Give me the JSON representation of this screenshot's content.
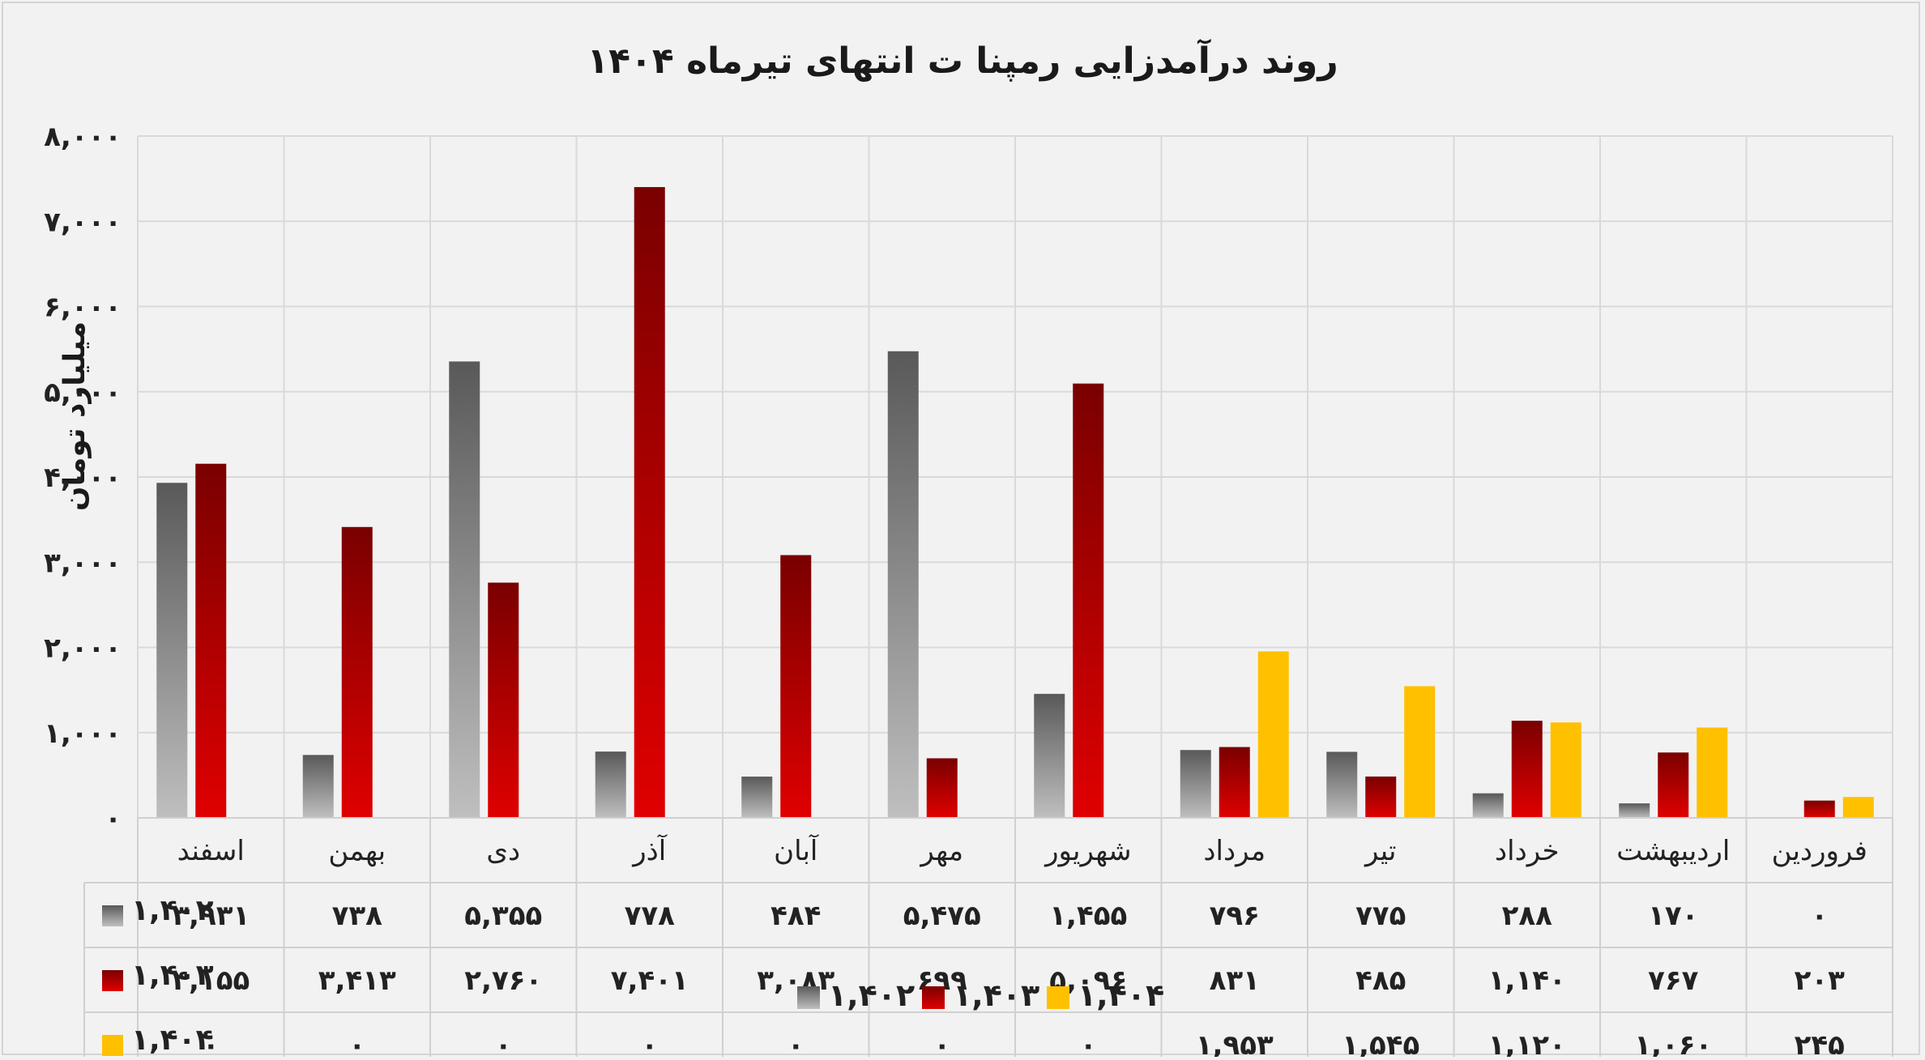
{
  "chart_data": {
    "type": "bar",
    "title": "روند درآمدزایی رمپنا ت انتهای تیرماه ۱۴۰۴",
    "ylabel": "میلیارد تومان",
    "ylim": [
      0,
      8000
    ],
    "yticks": [
      0,
      1000,
      2000,
      3000,
      4000,
      5000,
      6000,
      7000,
      8000
    ],
    "ytick_labels": [
      "۰",
      "۱,۰۰۰",
      "۲,۰۰۰",
      "۳,۰۰۰",
      "۴,۰۰۰",
      "۵,۰۰۰",
      "۶,۰۰۰",
      "۷,۰۰۰",
      "۸,۰۰۰"
    ],
    "categories": [
      "فروردین",
      "اردیبهشت",
      "خرداد",
      "تیر",
      "مرداد",
      "شهریور",
      "مهر",
      "آبان",
      "آذر",
      "دی",
      "بهمن",
      "اسفند"
    ],
    "series": [
      {
        "name": "۱,۴۰۲",
        "color": "#7f7f7f",
        "values": [
          0,
          170,
          288,
          775,
          796,
          1455,
          5475,
          484,
          778,
          5355,
          738,
          3931
        ],
        "labels": [
          "۰",
          "۱۷۰",
          "۲۸۸",
          "۷۷۵",
          "۷۹۶",
          "۱,۴۵۵",
          "۵,۴۷۵",
          "۴۸۴",
          "۷۷۸",
          "۵,۳۵۵",
          "۷۳۸",
          "۳,۹۳۱"
        ]
      },
      {
        "name": "۱,۴۰۳",
        "color": "#c00000",
        "values": [
          203,
          767,
          1140,
          485,
          831,
          5096,
          699,
          3083,
          7401,
          2760,
          3413,
          4155
        ],
        "labels": [
          "۲۰۳",
          "۷۶۷",
          "۱,۱۴۰",
          "۴۸۵",
          "۸۳۱",
          "۵,۰۹۶",
          "۶۹۹",
          "۳,۰۸۳",
          "۷,۴۰۱",
          "۲,۷۶۰",
          "۳,۴۱۳",
          "۴,۱۵۵"
        ]
      },
      {
        "name": "۱,۴۰۴",
        "color": "#ffc000",
        "values": [
          245,
          1060,
          1120,
          1545,
          1953,
          0,
          0,
          0,
          0,
          0,
          0,
          0
        ],
        "labels": [
          "۲۴۵",
          "۱,۰۶۰",
          "۱,۱۲۰",
          "۱,۵۴۵",
          "۱,۹۵۳",
          "۰",
          "۰",
          "۰",
          "۰",
          "۰",
          "۰",
          "۰"
        ]
      }
    ],
    "legend": "bottom",
    "grid": true,
    "data_table": true
  }
}
